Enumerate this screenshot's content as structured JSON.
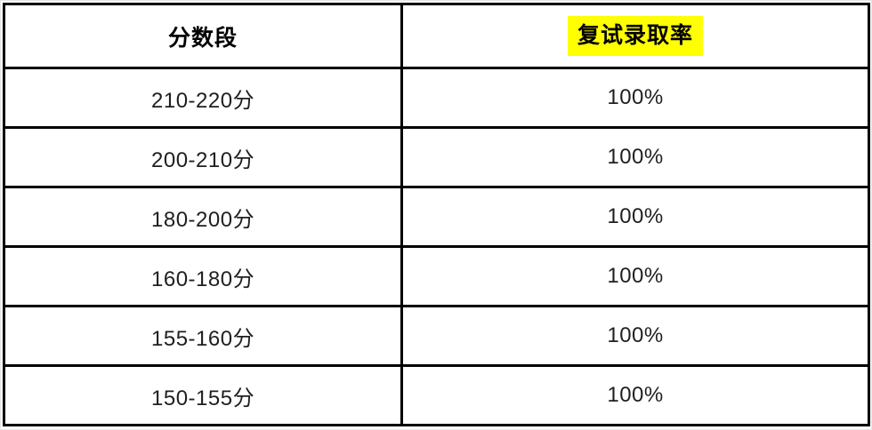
{
  "table": {
    "columns": [
      {
        "label": "分数段",
        "highlight": false
      },
      {
        "label": "复试录取率",
        "highlight": true
      }
    ],
    "rows": [
      {
        "range": "210-220分",
        "rate": "100%"
      },
      {
        "range": "200-210分",
        "rate": "100%"
      },
      {
        "range": "180-200分",
        "rate": "100%"
      },
      {
        "range": "160-180分",
        "rate": "100%"
      },
      {
        "range": "155-160分",
        "rate": "100%"
      },
      {
        "range": "150-155分",
        "rate": "100%"
      }
    ],
    "colors": {
      "highlight": "#ffff00",
      "border": "#000000"
    }
  }
}
